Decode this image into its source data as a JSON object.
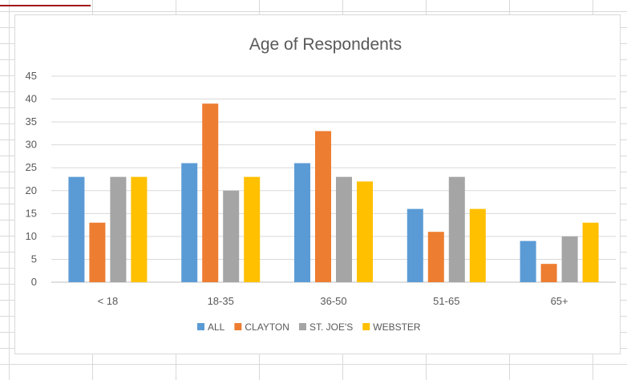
{
  "chart_data": {
    "type": "bar",
    "title": "Age of Respondents",
    "categories": [
      "< 18",
      "18-35",
      "36-50",
      "51-65",
      "65+"
    ],
    "series": [
      {
        "name": "ALL",
        "color": "#5B9BD5",
        "values": [
          23,
          26,
          26,
          16,
          9
        ]
      },
      {
        "name": "CLAYTON",
        "color": "#ED7D31",
        "values": [
          13,
          39,
          33,
          11,
          4
        ]
      },
      {
        "name": "ST. JOE'S",
        "color": "#A5A5A5",
        "values": [
          23,
          20,
          23,
          23,
          10
        ]
      },
      {
        "name": "WEBSTER",
        "color": "#FFC000",
        "values": [
          23,
          23,
          22,
          16,
          13
        ]
      }
    ],
    "yticks": [
      0,
      5,
      10,
      15,
      20,
      25,
      30,
      35,
      40,
      45
    ],
    "ylim": [
      0,
      45
    ],
    "xlabel": "",
    "ylabel": "",
    "grid": true,
    "legend": "bottom"
  }
}
